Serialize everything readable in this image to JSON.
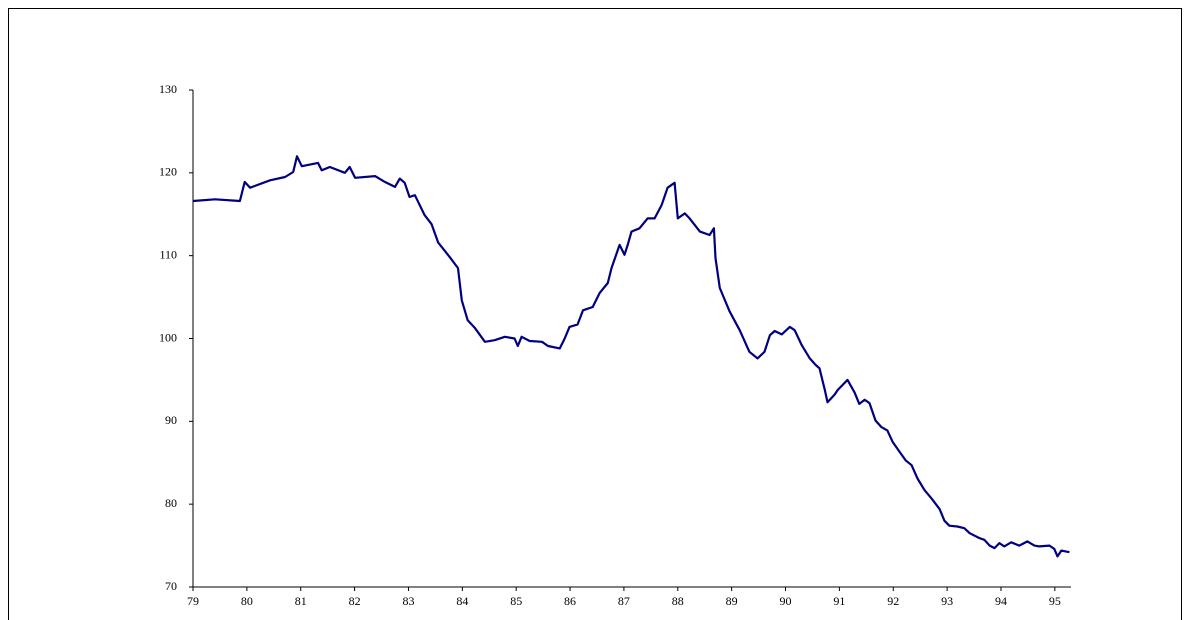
{
  "chart_data": {
    "type": "line",
    "x": [
      79.0,
      79.41,
      79.87,
      79.96,
      80.06,
      80.43,
      80.71,
      80.86,
      80.93,
      81.02,
      81.32,
      81.39,
      81.54,
      81.82,
      81.91,
      82.01,
      82.38,
      82.56,
      82.75,
      82.84,
      82.93,
      83.02,
      83.12,
      83.3,
      83.43,
      83.55,
      83.77,
      83.92,
      83.99,
      84.1,
      84.23,
      84.42,
      84.6,
      84.79,
      84.97,
      85.03,
      85.1,
      85.25,
      85.48,
      85.59,
      85.81,
      85.9,
      85.99,
      86.14,
      86.24,
      86.42,
      86.55,
      86.7,
      86.77,
      86.92,
      87.01,
      87.07,
      87.14,
      87.29,
      87.44,
      87.57,
      87.7,
      87.81,
      87.94,
      88.0,
      88.13,
      88.22,
      88.41,
      88.59,
      88.67,
      88.7,
      88.78,
      88.96,
      89.15,
      89.33,
      89.48,
      89.61,
      89.71,
      89.8,
      89.93,
      90.08,
      90.17,
      90.3,
      90.45,
      90.56,
      90.63,
      90.73,
      90.78,
      90.91,
      90.97,
      91.15,
      91.28,
      91.37,
      91.47,
      91.56,
      91.67,
      91.78,
      91.89,
      91.99,
      92.12,
      92.23,
      92.34,
      92.45,
      92.58,
      92.71,
      92.86,
      92.95,
      93.04,
      93.19,
      93.32,
      93.42,
      93.6,
      93.69,
      93.79,
      93.88,
      93.97,
      94.06,
      94.19,
      94.34,
      94.49,
      94.62,
      94.71,
      94.9,
      94.99,
      95.05,
      95.12,
      95.27
    ],
    "series": [
      {
        "color": "#000080",
        "values": [
          116.6,
          116.8,
          116.6,
          118.9,
          118.2,
          119.1,
          119.5,
          120.1,
          122.0,
          120.8,
          121.2,
          120.3,
          120.7,
          120.0,
          120.7,
          119.4,
          119.6,
          118.9,
          118.3,
          119.3,
          118.8,
          117.1,
          117.3,
          114.9,
          113.8,
          111.6,
          109.8,
          108.5,
          104.6,
          102.2,
          101.3,
          99.6,
          99.8,
          100.2,
          100.0,
          99.1,
          100.2,
          99.7,
          99.6,
          99.1,
          98.8,
          100.0,
          101.4,
          101.7,
          103.4,
          103.8,
          105.5,
          106.7,
          108.5,
          111.3,
          110.1,
          111.3,
          112.9,
          113.3,
          114.5,
          114.5,
          116.1,
          118.2,
          118.8,
          114.5,
          115.1,
          114.5,
          112.9,
          112.5,
          113.3,
          109.7,
          106.1,
          103.3,
          101.0,
          98.4,
          97.6,
          98.4,
          100.4,
          100.9,
          100.5,
          101.4,
          101.0,
          99.2,
          97.6,
          96.8,
          96.4,
          93.8,
          92.3,
          93.2,
          93.8,
          95.0,
          93.5,
          92.1,
          92.6,
          92.2,
          90.1,
          89.3,
          88.9,
          87.5,
          86.3,
          85.3,
          84.7,
          83.1,
          81.7,
          80.7,
          79.4,
          78.0,
          77.4,
          77.3,
          77.1,
          76.5,
          75.9,
          75.7,
          75.0,
          74.7,
          75.3,
          74.9,
          75.4,
          75.0,
          75.5,
          75.0,
          74.9,
          75.0,
          74.6,
          73.7,
          74.4,
          74.2
        ]
      }
    ],
    "xlim": [
      79,
      95.3
    ],
    "xticks": [
      79,
      80,
      81,
      82,
      83,
      84,
      85,
      86,
      87,
      88,
      89,
      90,
      91,
      92,
      93,
      94,
      95
    ],
    "ylim": [
      70,
      130
    ],
    "yticks": [
      70,
      80,
      90,
      100,
      110,
      120,
      130
    ]
  }
}
